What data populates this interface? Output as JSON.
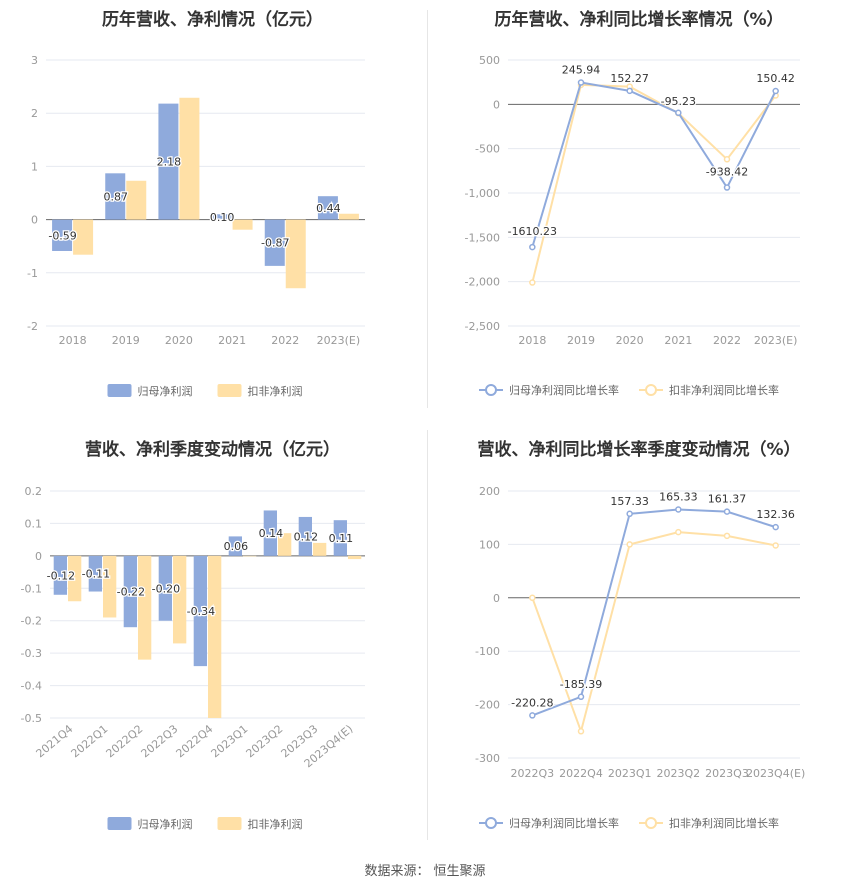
{
  "source": {
    "label": "数据来源：",
    "value": "恒生聚源"
  },
  "chart_data": [
    {
      "type": "bar",
      "title": "历年营收、净利情况（亿元）",
      "categories": [
        "2018",
        "2019",
        "2020",
        "2021",
        "2022",
        "2023(E)"
      ],
      "ylim": [
        -2,
        3
      ],
      "yticks": [
        -2,
        -1,
        0,
        1,
        2,
        3
      ],
      "legend": "bottom",
      "grid": true,
      "series": [
        {
          "name": "归母净利润",
          "color": "#8faadc",
          "values": [
            -0.59,
            0.87,
            2.18,
            0.1,
            -0.87,
            0.44
          ],
          "labels": [
            "-0.59",
            "0.87",
            "2.18",
            "0.10",
            "-0.87",
            "0.44"
          ]
        },
        {
          "name": "扣非净利润",
          "color": "#ffe0a6",
          "values": [
            -0.66,
            0.73,
            2.29,
            -0.19,
            -1.29,
            0.11
          ]
        }
      ]
    },
    {
      "type": "line",
      "title": "历年营收、净利同比增长率情况（%）",
      "categories": [
        "2018",
        "2019",
        "2020",
        "2021",
        "2022",
        "2023(E)"
      ],
      "ylim": [
        -2500,
        500
      ],
      "yticks": [
        -2500,
        -2000,
        -1500,
        -1000,
        -500,
        0,
        500
      ],
      "ytick_labels": [
        "-2,500",
        "-2,000",
        "-1,500",
        "-1,000",
        "-500",
        "0",
        "500"
      ],
      "legend": "bottom",
      "grid": true,
      "series": [
        {
          "name": "归母净利润同比增长率",
          "color": "#8faadc",
          "values": [
            -1610.23,
            245.94,
            152.27,
            -95.23,
            -938.42,
            150.42
          ],
          "labels": [
            "-1610.23",
            "245.94",
            "152.27",
            "-95.23",
            "-938.42",
            "150.42"
          ]
        },
        {
          "name": "扣非净利润同比增长率",
          "color": "#ffe0a6",
          "values": [
            -2010,
            220,
            200,
            -100,
            -620,
            100
          ]
        }
      ]
    },
    {
      "type": "bar",
      "title": "营收、净利季度变动情况（亿元）",
      "categories": [
        "2021Q4",
        "2022Q1",
        "2022Q2",
        "2022Q3",
        "2022Q4",
        "2023Q1",
        "2023Q2",
        "2023Q3",
        "2023Q4(E)"
      ],
      "ylim": [
        -0.5,
        0.2
      ],
      "yticks": [
        -0.5,
        -0.4,
        -0.3,
        -0.2,
        -0.1,
        0,
        0.1,
        0.2
      ],
      "legend": "bottom",
      "grid": true,
      "series": [
        {
          "name": "归母净利润",
          "color": "#8faadc",
          "values": [
            -0.12,
            -0.11,
            -0.22,
            -0.2,
            -0.34,
            0.06,
            0.14,
            0.12,
            0.11
          ],
          "labels": [
            "-0.12",
            "-0.11",
            "-0.22",
            "-0.20",
            "-0.34",
            "0.06",
            "0.14",
            "0.12",
            "0.11"
          ]
        },
        {
          "name": "扣非净利润",
          "color": "#ffe0a6",
          "values": [
            -0.14,
            -0.19,
            -0.32,
            -0.27,
            -0.5,
            0.0,
            0.07,
            0.04,
            -0.01
          ]
        }
      ]
    },
    {
      "type": "line",
      "title": "营收、净利同比增长率季度变动情况（%）",
      "categories": [
        "2022Q3",
        "2022Q4",
        "2023Q1",
        "2023Q2",
        "2023Q3",
        "2023Q4(E)"
      ],
      "ylim": [
        -300,
        200
      ],
      "yticks": [
        -300,
        -200,
        -100,
        0,
        100,
        200
      ],
      "legend": "bottom",
      "grid": true,
      "series": [
        {
          "name": "归母净利润同比增长率",
          "color": "#8faadc",
          "values": [
            -220.28,
            -185.39,
            157.33,
            165.33,
            161.37,
            132.36
          ],
          "labels": [
            "-220.28",
            "-185.39",
            "157.33",
            "165.33",
            "161.37",
            "132.36"
          ]
        },
        {
          "name": "扣非净利润同比增长率",
          "color": "#ffe0a6",
          "values": [
            0,
            -250,
            100,
            123,
            116,
            98
          ]
        }
      ]
    }
  ]
}
